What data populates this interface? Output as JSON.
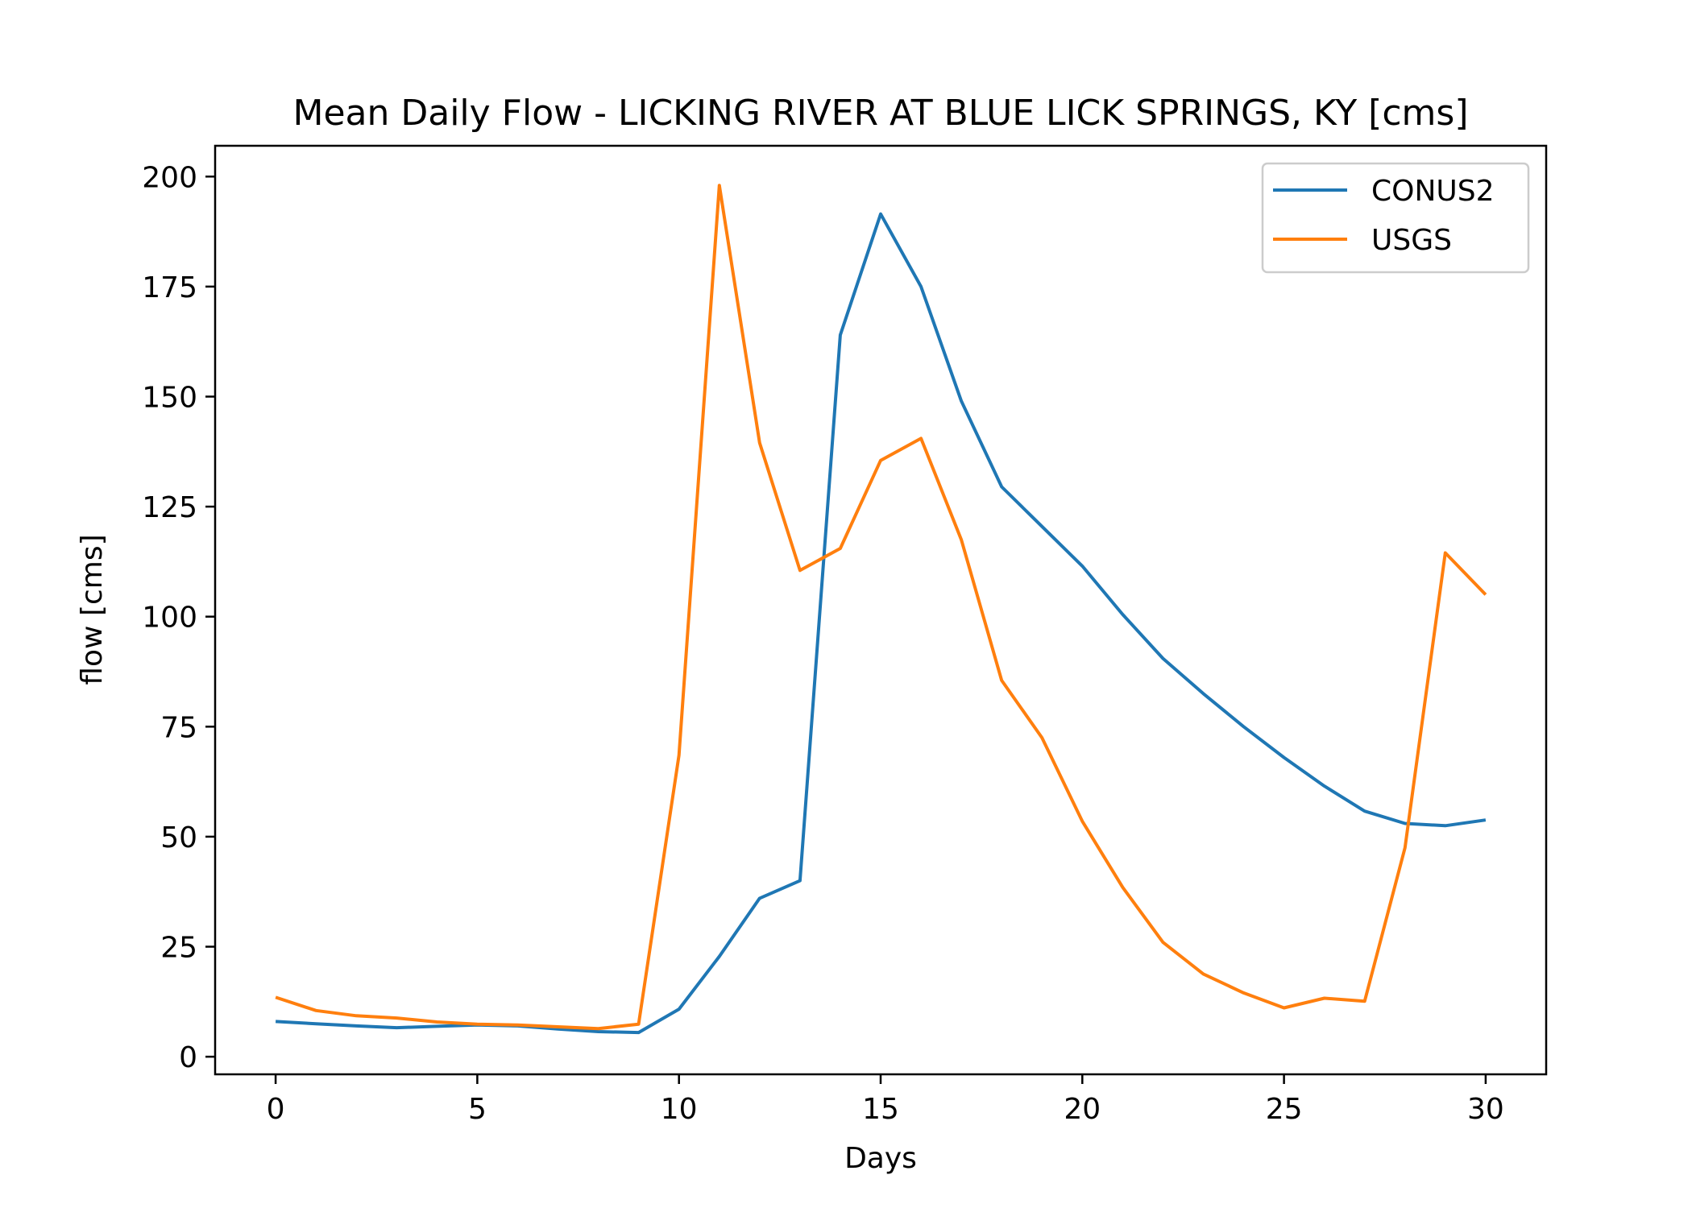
{
  "chart_data": {
    "type": "line",
    "title": "Mean Daily Flow - LICKING RIVER AT BLUE LICK SPRINGS, KY [cms]",
    "xlabel": "Days",
    "ylabel": "flow [cms]",
    "xlim": [
      -1.5,
      31.5
    ],
    "ylim": [
      -4,
      207
    ],
    "xticks": [
      0,
      5,
      10,
      15,
      20,
      25,
      30
    ],
    "yticks": [
      0,
      25,
      50,
      75,
      100,
      125,
      150,
      175,
      200
    ],
    "grid": false,
    "legend_position": "top-right",
    "x": [
      0,
      1,
      2,
      3,
      4,
      5,
      6,
      7,
      8,
      9,
      10,
      11,
      12,
      13,
      14,
      15,
      16,
      17,
      18,
      19,
      20,
      21,
      22,
      23,
      24,
      25,
      26,
      27,
      28,
      29,
      30
    ],
    "series": [
      {
        "name": "CONUS2",
        "color": "#1f77b4",
        "values": [
          8,
          7.5,
          7,
          6.6,
          6.9,
          7.2,
          7,
          6.3,
          5.7,
          5.5,
          10.8,
          22.8,
          36,
          40,
          164,
          191.5,
          175,
          149,
          129.5,
          120.5,
          111.5,
          100.5,
          90.5,
          82.5,
          75,
          68,
          61.5,
          55.8,
          53,
          52.5,
          53.8
        ]
      },
      {
        "name": "USGS",
        "color": "#ff7f0e",
        "values": [
          13.5,
          10.5,
          9.3,
          8.8,
          7.9,
          7.4,
          7.2,
          6.8,
          6.4,
          7.4,
          68.5,
          198,
          139.5,
          110.5,
          115.5,
          135.5,
          140.5,
          117.5,
          85.5,
          72.5,
          53.5,
          38.5,
          26,
          18.8,
          14.5,
          11.1,
          13.3,
          12.6,
          47.5,
          114.5,
          105
        ]
      }
    ]
  }
}
